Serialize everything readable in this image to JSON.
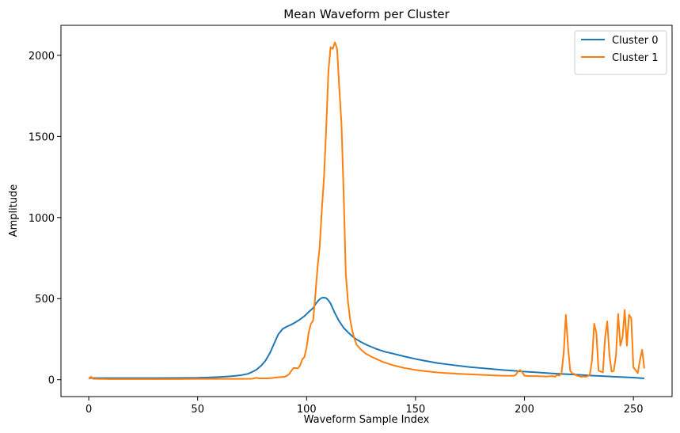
{
  "chart_data": {
    "type": "line",
    "title": "Mean Waveform per Cluster",
    "xlabel": "Waveform Sample Index",
    "ylabel": "Amplitude",
    "xlim": [
      -12.75,
      267.75
    ],
    "ylim": [
      -104,
      2185
    ],
    "xticks": [
      0,
      50,
      100,
      150,
      200,
      250
    ],
    "yticks": [
      0,
      500,
      1000,
      1500,
      2000
    ],
    "grid": false,
    "legend_position": "top-right",
    "series": [
      {
        "name": "Cluster 0",
        "color": "#1f77b4",
        "points": [
          [
            0,
            10
          ],
          [
            10,
            10
          ],
          [
            20,
            10
          ],
          [
            30,
            10
          ],
          [
            40,
            11
          ],
          [
            50,
            12
          ],
          [
            55,
            14
          ],
          [
            60,
            17
          ],
          [
            65,
            21
          ],
          [
            70,
            28
          ],
          [
            73,
            36
          ],
          [
            75,
            48
          ],
          [
            77,
            62
          ],
          [
            79,
            85
          ],
          [
            81,
            115
          ],
          [
            83,
            160
          ],
          [
            85,
            220
          ],
          [
            87,
            280
          ],
          [
            89,
            313
          ],
          [
            91,
            328
          ],
          [
            93,
            340
          ],
          [
            95,
            355
          ],
          [
            97,
            372
          ],
          [
            99,
            392
          ],
          [
            101,
            418
          ],
          [
            103,
            442
          ],
          [
            104,
            464
          ],
          [
            105,
            482
          ],
          [
            106,
            496
          ],
          [
            107,
            505
          ],
          [
            108,
            506
          ],
          [
            109,
            503
          ],
          [
            110,
            490
          ],
          [
            111,
            470
          ],
          [
            112,
            440
          ],
          [
            113,
            410
          ],
          [
            115,
            360
          ],
          [
            117,
            320
          ],
          [
            119,
            292
          ],
          [
            121,
            268
          ],
          [
            123,
            248
          ],
          [
            125,
            232
          ],
          [
            128,
            212
          ],
          [
            132,
            190
          ],
          [
            136,
            172
          ],
          [
            140,
            160
          ],
          [
            145,
            143
          ],
          [
            150,
            128
          ],
          [
            155,
            115
          ],
          [
            160,
            103
          ],
          [
            165,
            94
          ],
          [
            170,
            86
          ],
          [
            175,
            78
          ],
          [
            180,
            72
          ],
          [
            185,
            66
          ],
          [
            190,
            60
          ],
          [
            195,
            55
          ],
          [
            200,
            50
          ],
          [
            205,
            46
          ],
          [
            210,
            41
          ],
          [
            215,
            37
          ],
          [
            220,
            34
          ],
          [
            225,
            30
          ],
          [
            230,
            26
          ],
          [
            235,
            23
          ],
          [
            240,
            19
          ],
          [
            245,
            16
          ],
          [
            250,
            13
          ],
          [
            255,
            8
          ]
        ]
      },
      {
        "name": "Cluster 1",
        "color": "#ff7f0e",
        "points": [
          [
            0,
            5
          ],
          [
            1,
            18
          ],
          [
            2,
            6
          ],
          [
            5,
            5
          ],
          [
            10,
            4
          ],
          [
            20,
            4
          ],
          [
            30,
            4
          ],
          [
            40,
            4
          ],
          [
            50,
            5
          ],
          [
            60,
            5
          ],
          [
            70,
            5
          ],
          [
            75,
            6
          ],
          [
            77,
            12
          ],
          [
            78,
            8
          ],
          [
            80,
            8
          ],
          [
            82,
            8
          ],
          [
            84,
            10
          ],
          [
            86,
            14
          ],
          [
            88,
            16
          ],
          [
            90,
            18
          ],
          [
            91,
            25
          ],
          [
            92,
            35
          ],
          [
            93,
            55
          ],
          [
            94,
            72
          ],
          [
            95,
            72
          ],
          [
            96,
            70
          ],
          [
            97,
            88
          ],
          [
            98,
            125
          ],
          [
            99,
            140
          ],
          [
            100,
            200
          ],
          [
            101,
            295
          ],
          [
            102,
            345
          ],
          [
            103,
            365
          ],
          [
            104,
            520
          ],
          [
            105,
            690
          ],
          [
            106,
            820
          ],
          [
            107,
            1050
          ],
          [
            108,
            1250
          ],
          [
            109,
            1550
          ],
          [
            110,
            1900
          ],
          [
            111,
            2050
          ],
          [
            112,
            2040
          ],
          [
            113,
            2080
          ],
          [
            114,
            2040
          ],
          [
            115,
            1800
          ],
          [
            116,
            1580
          ],
          [
            117,
            1150
          ],
          [
            118,
            650
          ],
          [
            119,
            480
          ],
          [
            120,
            370
          ],
          [
            121,
            300
          ],
          [
            122,
            250
          ],
          [
            123,
            215
          ],
          [
            125,
            185
          ],
          [
            127,
            162
          ],
          [
            130,
            140
          ],
          [
            135,
            110
          ],
          [
            140,
            88
          ],
          [
            145,
            72
          ],
          [
            150,
            60
          ],
          [
            155,
            52
          ],
          [
            160,
            45
          ],
          [
            165,
            40
          ],
          [
            170,
            36
          ],
          [
            175,
            33
          ],
          [
            180,
            30
          ],
          [
            185,
            27
          ],
          [
            190,
            25
          ],
          [
            195,
            24
          ],
          [
            196,
            30
          ],
          [
            197,
            50
          ],
          [
            198,
            60
          ],
          [
            199,
            45
          ],
          [
            200,
            25
          ],
          [
            202,
            22
          ],
          [
            205,
            22
          ],
          [
            210,
            20
          ],
          [
            213,
            22
          ],
          [
            214,
            18
          ],
          [
            215,
            30
          ],
          [
            216,
            25
          ],
          [
            217,
            40
          ],
          [
            218,
            165
          ],
          [
            219,
            400
          ],
          [
            220,
            200
          ],
          [
            221,
            55
          ],
          [
            222,
            38
          ],
          [
            223,
            35
          ],
          [
            224,
            25
          ],
          [
            225,
            22
          ],
          [
            226,
            18
          ],
          [
            227,
            20
          ],
          [
            228,
            18
          ],
          [
            229,
            22
          ],
          [
            230,
            30
          ],
          [
            231,
            120
          ],
          [
            232,
            345
          ],
          [
            233,
            290
          ],
          [
            234,
            55
          ],
          [
            235,
            50
          ],
          [
            236,
            45
          ],
          [
            237,
            260
          ],
          [
            238,
            360
          ],
          [
            239,
            150
          ],
          [
            240,
            50
          ],
          [
            241,
            55
          ],
          [
            242,
            150
          ],
          [
            243,
            405
          ],
          [
            244,
            210
          ],
          [
            245,
            260
          ],
          [
            246,
            430
          ],
          [
            247,
            210
          ],
          [
            248,
            400
          ],
          [
            249,
            380
          ],
          [
            250,
            75
          ],
          [
            251,
            60
          ],
          [
            252,
            40
          ],
          [
            253,
            120
          ],
          [
            254,
            185
          ],
          [
            255,
            70
          ]
        ]
      }
    ]
  }
}
